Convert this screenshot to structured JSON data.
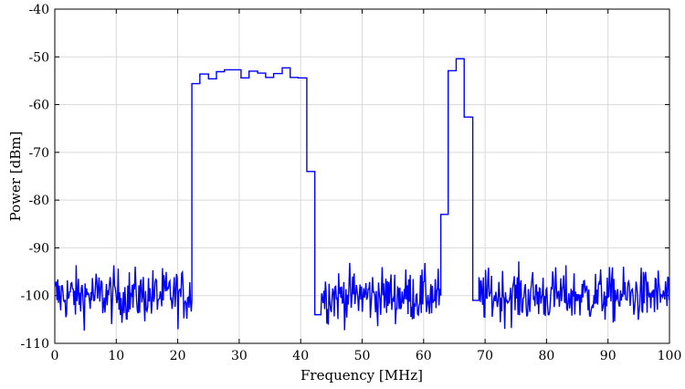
{
  "chart_data": {
    "type": "line",
    "xlabel": "Frequency [MHz]",
    "ylabel": "Power [dBm]",
    "xlim": [
      0,
      100
    ],
    "ylim": [
      -110,
      -40
    ],
    "xticks": [
      0,
      10,
      20,
      30,
      40,
      50,
      60,
      70,
      80,
      90,
      100
    ],
    "yticks": [
      -40,
      -50,
      -60,
      -70,
      -80,
      -90,
      -100,
      -110
    ],
    "grid": true,
    "line_color": "#0000ff",
    "noise_floor": {
      "mean": -100,
      "spread": 4,
      "min": -108,
      "max": -91
    },
    "noise_segments": [
      [
        0,
        22.3
      ],
      [
        43.3,
        62.8
      ],
      [
        69.0,
        100
      ]
    ],
    "series": [
      {
        "points": [
          [
            22.3,
            -101
          ],
          [
            22.3,
            -55.6
          ],
          [
            23.6,
            -55.6
          ],
          [
            23.6,
            -53.6
          ],
          [
            25.0,
            -53.6
          ],
          [
            25.0,
            -54.6
          ],
          [
            26.3,
            -54.6
          ],
          [
            26.3,
            -53.1
          ],
          [
            27.6,
            -53.1
          ],
          [
            27.6,
            -52.7
          ],
          [
            30.3,
            -52.7
          ],
          [
            30.3,
            -54.4
          ],
          [
            31.6,
            -54.4
          ],
          [
            31.6,
            -53.0
          ],
          [
            33.0,
            -53.0
          ],
          [
            33.0,
            -53.4
          ],
          [
            34.3,
            -53.4
          ],
          [
            34.3,
            -54.3
          ],
          [
            35.6,
            -54.3
          ],
          [
            35.6,
            -53.5
          ],
          [
            37.0,
            -53.5
          ],
          [
            37.0,
            -52.3
          ],
          [
            38.3,
            -52.3
          ],
          [
            38.3,
            -54.3
          ],
          [
            39.6,
            -54.3
          ],
          [
            39.6,
            -54.4
          ],
          [
            41.0,
            -54.4
          ],
          [
            41.0,
            -74.0
          ],
          [
            42.3,
            -74.0
          ],
          [
            42.3,
            -104
          ],
          [
            43.3,
            -104
          ],
          [
            62.8,
            -100
          ],
          [
            62.8,
            -83.0
          ],
          [
            64.0,
            -83.0
          ],
          [
            64.0,
            -52.9
          ],
          [
            65.3,
            -52.9
          ],
          [
            65.3,
            -50.4
          ],
          [
            66.6,
            -50.4
          ],
          [
            66.6,
            -62.6
          ],
          [
            68.0,
            -62.6
          ],
          [
            68.0,
            -101
          ],
          [
            69.0,
            -101
          ]
        ]
      }
    ]
  }
}
